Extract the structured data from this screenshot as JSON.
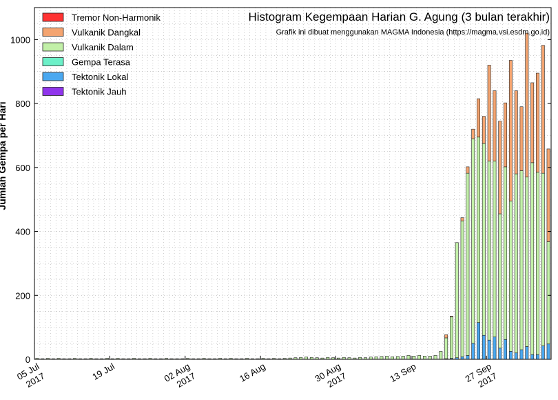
{
  "chart_data": {
    "type": "bar",
    "stacked": true,
    "title": "Histogram Kegempaan Harian G. Agung (3 bulan terakhir)",
    "subtitle": "Grafik ini dibuat menggunakan MAGMA Indonesia (https://magma.vsi.esdm.go.id)",
    "ylabel": "Jumlah Gempa per Hari",
    "xlabel": "",
    "ylim": [
      0,
      1100
    ],
    "yticks": [
      0,
      200,
      400,
      600,
      800,
      1000
    ],
    "grid": true,
    "legend_position": "top-left",
    "date_start": "2017-07-05",
    "xticks": [
      {
        "day_index": 0,
        "label": "05 Jul",
        "year": "2017"
      },
      {
        "day_index": 14,
        "label": "19 Jul",
        "year": ""
      },
      {
        "day_index": 28,
        "label": "02 Aug",
        "year": "2017"
      },
      {
        "day_index": 42,
        "label": "16 Aug",
        "year": ""
      },
      {
        "day_index": 56,
        "label": "30 Aug",
        "year": "2017"
      },
      {
        "day_index": 70,
        "label": "13 Sep",
        "year": ""
      },
      {
        "day_index": 84,
        "label": "27 Sep",
        "year": "2017"
      }
    ],
    "series": [
      {
        "name": "Tremor Non-Harmonik",
        "color": "#ff3333",
        "values": [
          0,
          0,
          0,
          0,
          0,
          0,
          0,
          0,
          0,
          0,
          0,
          0,
          0,
          0,
          0,
          0,
          0,
          0,
          0,
          0,
          0,
          0,
          0,
          0,
          0,
          0,
          0,
          0,
          0,
          0,
          0,
          0,
          0,
          0,
          0,
          0,
          0,
          0,
          0,
          0,
          0,
          0,
          0,
          0,
          0,
          0,
          0,
          0,
          0,
          0,
          0,
          0,
          0,
          0,
          0,
          0,
          0,
          0,
          0,
          0,
          0,
          0,
          0,
          0,
          0,
          0,
          0,
          0,
          0,
          0,
          0,
          0,
          0,
          0,
          0,
          0,
          0,
          0,
          0,
          0,
          0,
          0,
          0,
          0,
          0,
          0,
          0,
          0,
          0,
          0,
          0,
          0,
          0,
          0,
          0,
          0
        ]
      },
      {
        "name": "Vulkanik Dangkal",
        "color": "#f4a470",
        "values": [
          0,
          0,
          0,
          0,
          0,
          0,
          0,
          0,
          0,
          0,
          0,
          0,
          0,
          0,
          0,
          0,
          0,
          0,
          0,
          0,
          0,
          0,
          0,
          0,
          0,
          0,
          0,
          0,
          0,
          0,
          0,
          0,
          0,
          0,
          0,
          0,
          0,
          0,
          0,
          0,
          0,
          0,
          0,
          0,
          0,
          0,
          0,
          0,
          0,
          0,
          0,
          0,
          0,
          0,
          0,
          0,
          0,
          0,
          0,
          0,
          0,
          0,
          0,
          0,
          0,
          0,
          0,
          0,
          0,
          0,
          0,
          0,
          0,
          0,
          0,
          0,
          10,
          2,
          0,
          10,
          20,
          30,
          120,
          85,
          300,
          220,
          290,
          200,
          440,
          260,
          200,
          450,
          250,
          310,
          400,
          290
        ]
      },
      {
        "name": "Vulkanik Dalam",
        "color": "#c2f0a8",
        "values": [
          3,
          2,
          3,
          2,
          3,
          2,
          2,
          3,
          2,
          2,
          3,
          2,
          2,
          3,
          2,
          3,
          2,
          2,
          3,
          2,
          2,
          3,
          2,
          2,
          3,
          2,
          2,
          2,
          3,
          2,
          2,
          3,
          2,
          2,
          3,
          2,
          3,
          2,
          2,
          3,
          2,
          2,
          3,
          2,
          3,
          2,
          3,
          4,
          5,
          6,
          7,
          6,
          5,
          4,
          6,
          5,
          4,
          6,
          5,
          4,
          6,
          5,
          7,
          8,
          9,
          10,
          8,
          9,
          10,
          12,
          10,
          12,
          10,
          10,
          12,
          25,
          65,
          130,
          360,
          425,
          570,
          640,
          580,
          600,
          560,
          550,
          420,
          540,
          470,
          560,
          560,
          530,
          600,
          570,
          540,
          320
        ]
      },
      {
        "name": "Gempa Terasa",
        "color": "#6cf0c8",
        "values": [
          0,
          0,
          0,
          0,
          0,
          0,
          0,
          0,
          0,
          0,
          0,
          0,
          0,
          0,
          0,
          0,
          0,
          0,
          0,
          0,
          0,
          0,
          0,
          0,
          0,
          0,
          0,
          0,
          0,
          0,
          0,
          0,
          0,
          0,
          0,
          0,
          0,
          0,
          0,
          0,
          0,
          0,
          0,
          0,
          0,
          0,
          0,
          0,
          0,
          0,
          0,
          0,
          0,
          0,
          0,
          0,
          0,
          0,
          0,
          0,
          0,
          0,
          0,
          0,
          0,
          0,
          0,
          0,
          0,
          0,
          0,
          0,
          0,
          0,
          0,
          0,
          0,
          0,
          0,
          0,
          0,
          0,
          0,
          0,
          0,
          0,
          0,
          0,
          0,
          0,
          0,
          0,
          0,
          0,
          0,
          0
        ]
      },
      {
        "name": "Tektonik Lokal",
        "color": "#4aa8f0",
        "values": [
          0,
          0,
          0,
          0,
          0,
          0,
          0,
          0,
          0,
          0,
          0,
          0,
          0,
          0,
          0,
          0,
          0,
          0,
          0,
          0,
          0,
          0,
          0,
          0,
          0,
          0,
          0,
          0,
          0,
          0,
          0,
          0,
          0,
          0,
          0,
          0,
          0,
          0,
          0,
          0,
          0,
          0,
          0,
          0,
          0,
          0,
          0,
          0,
          0,
          0,
          0,
          0,
          0,
          0,
          0,
          0,
          0,
          0,
          0,
          0,
          0,
          0,
          0,
          0,
          0,
          0,
          0,
          0,
          0,
          0,
          0,
          0,
          0,
          0,
          0,
          0,
          2,
          3,
          5,
          8,
          12,
          50,
          115,
          75,
          60,
          70,
          35,
          62,
          25,
          20,
          30,
          40,
          15,
          15,
          42,
          48
        ]
      },
      {
        "name": "Tektonik Jauh",
        "color": "#9035ec",
        "values": [
          0,
          0,
          0,
          0,
          0,
          0,
          0,
          0,
          0,
          0,
          0,
          0,
          0,
          0,
          0,
          0,
          0,
          0,
          0,
          0,
          0,
          0,
          0,
          0,
          0,
          0,
          0,
          0,
          0,
          0,
          0,
          0,
          0,
          0,
          0,
          0,
          0,
          0,
          0,
          0,
          0,
          0,
          0,
          0,
          0,
          0,
          0,
          0,
          0,
          0,
          0,
          0,
          0,
          0,
          0,
          0,
          0,
          0,
          0,
          0,
          0,
          0,
          0,
          0,
          0,
          0,
          0,
          0,
          0,
          0,
          0,
          0,
          0,
          0,
          0,
          0,
          0,
          0,
          0,
          0,
          0,
          0,
          0,
          0,
          0,
          0,
          0,
          0,
          0,
          0,
          0,
          0,
          0,
          0,
          0,
          0
        ]
      }
    ]
  }
}
